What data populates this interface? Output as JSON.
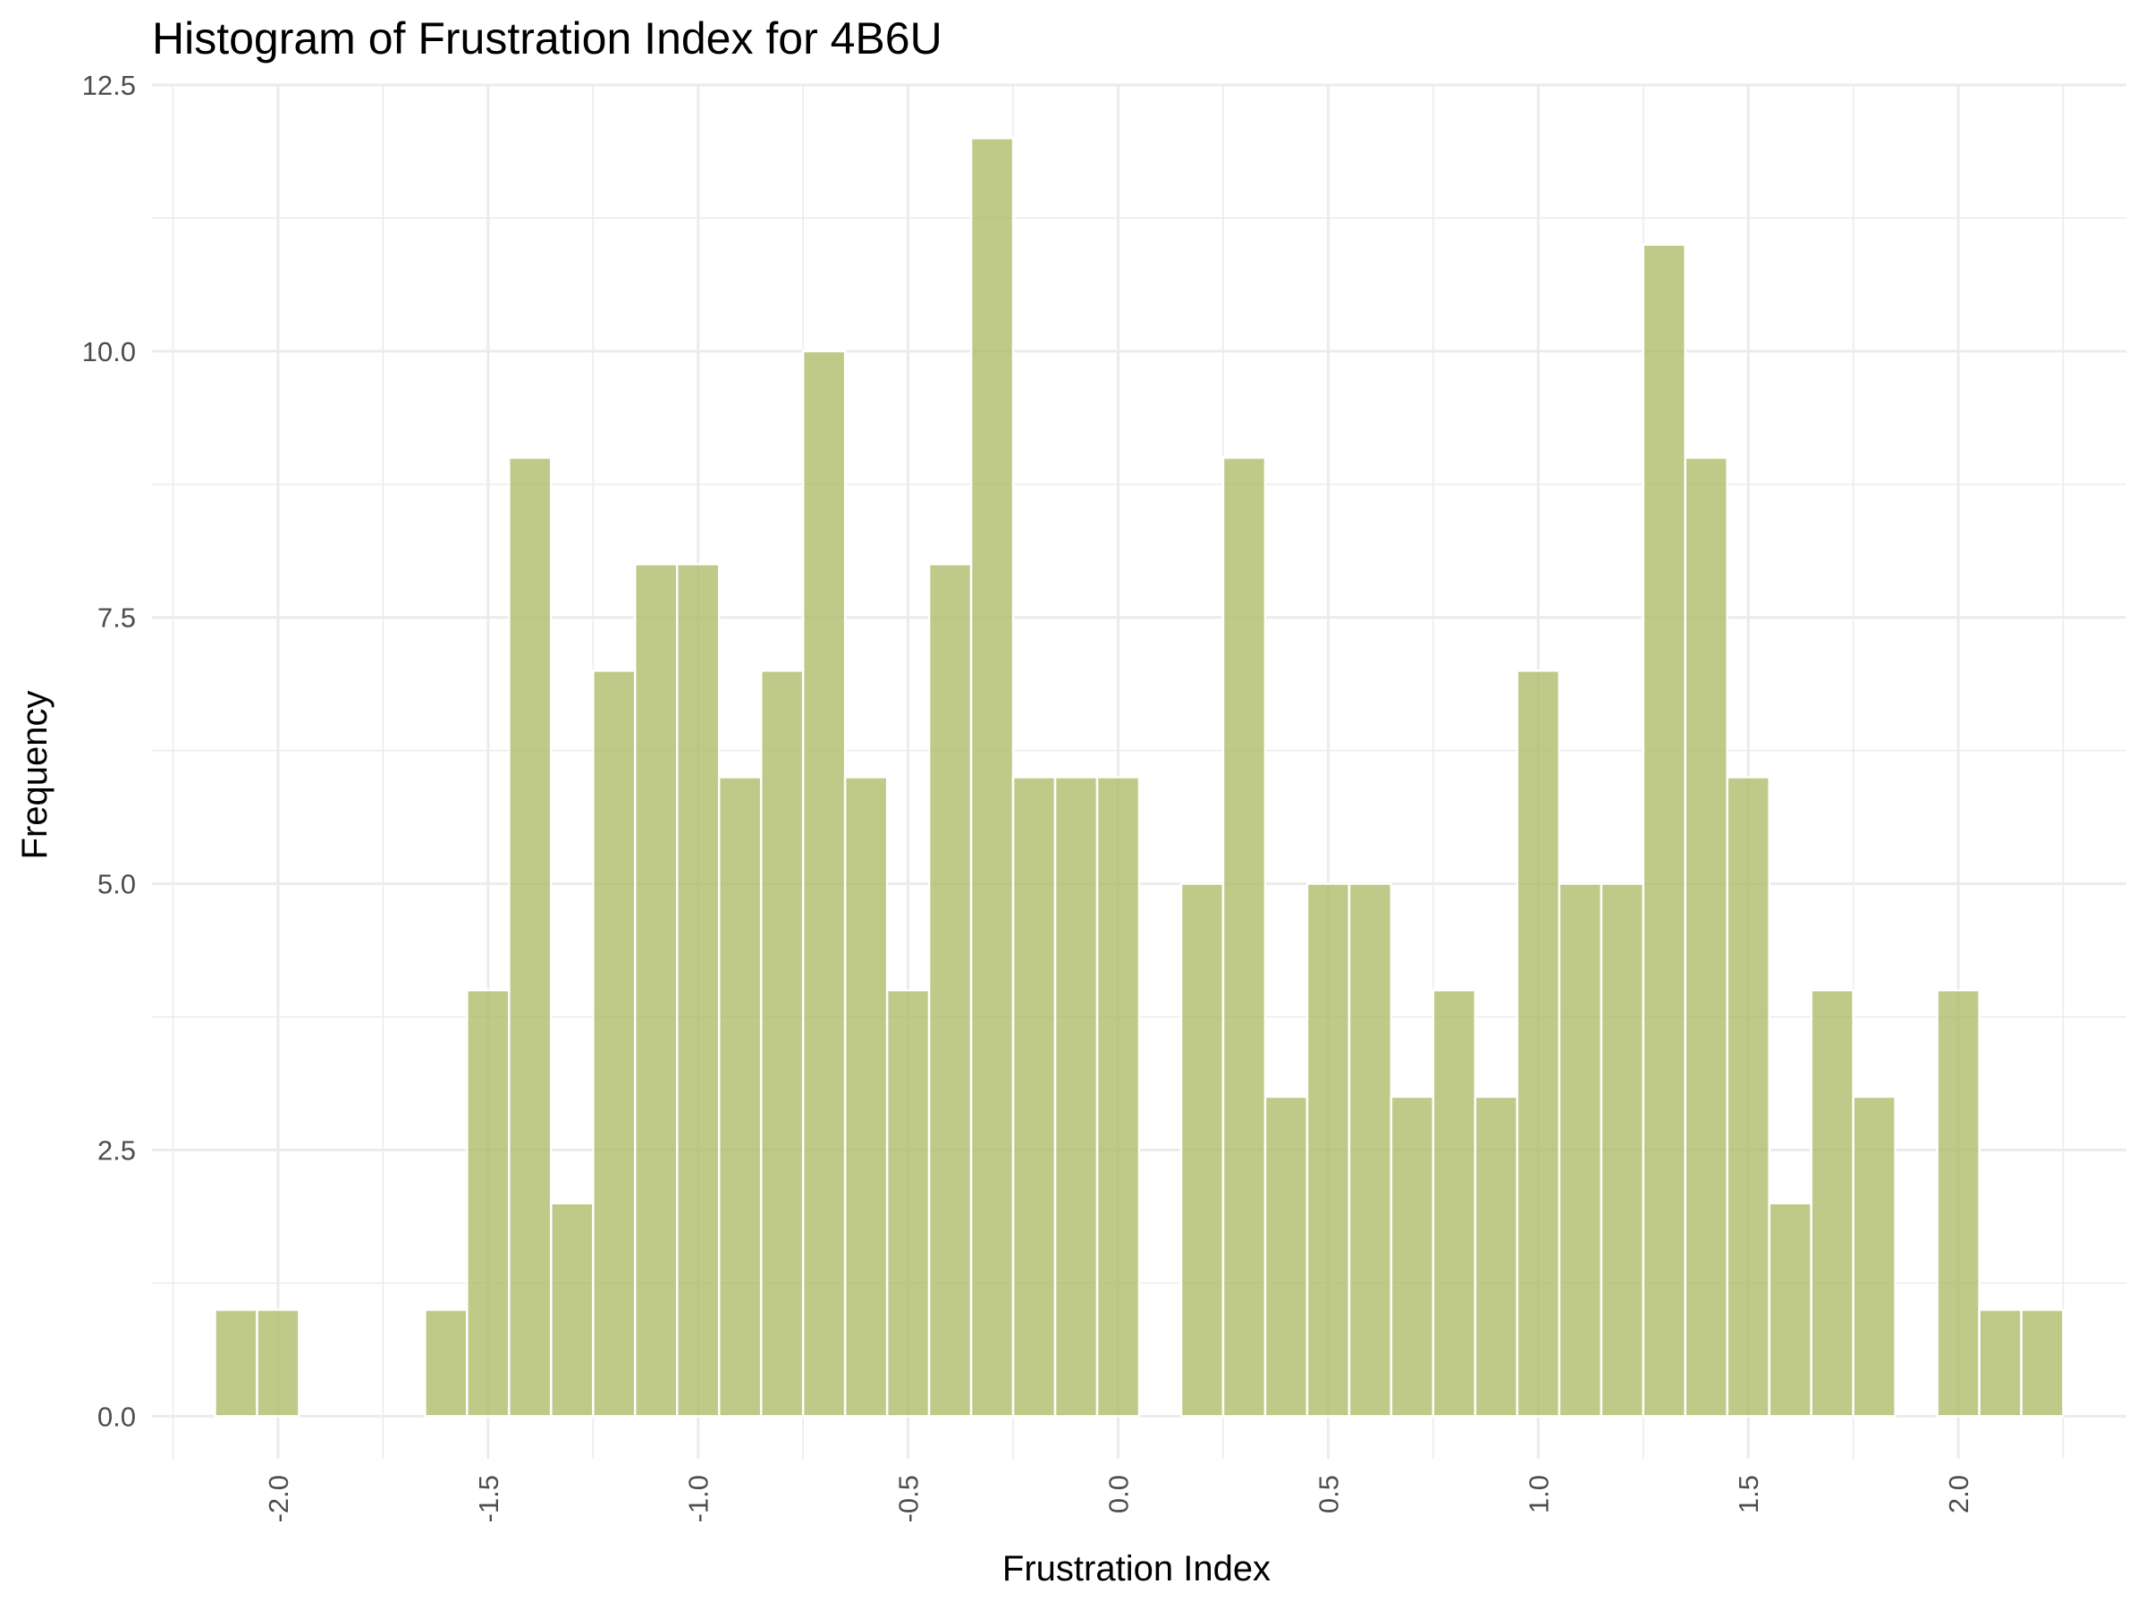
{
  "chart_data": {
    "type": "bar",
    "title": "Histogram of Frustration Index for 4B6U",
    "xlabel": "Frustration Index",
    "ylabel": "Frequency",
    "xlim": [
      -2.3,
      2.4
    ],
    "ylim": [
      -0.4,
      12.5
    ],
    "x_ticks": [
      {
        "value": -2.0,
        "label": "-2.0"
      },
      {
        "value": -1.5,
        "label": "-1.5"
      },
      {
        "value": -1.0,
        "label": "-1.0"
      },
      {
        "value": -0.5,
        "label": "-0.5"
      },
      {
        "value": 0.0,
        "label": "0.0"
      },
      {
        "value": 0.5,
        "label": "0.5"
      },
      {
        "value": 1.0,
        "label": "1.0"
      },
      {
        "value": 1.5,
        "label": "1.5"
      },
      {
        "value": 2.0,
        "label": "2.0"
      }
    ],
    "y_ticks": [
      {
        "value": 0.0,
        "label": "0.0"
      },
      {
        "value": 2.5,
        "label": "2.5"
      },
      {
        "value": 5.0,
        "label": "5.0"
      },
      {
        "value": 7.5,
        "label": "7.5"
      },
      {
        "value": 10.0,
        "label": "10.0"
      },
      {
        "value": 12.5,
        "label": "12.5"
      }
    ],
    "x_tick_rotation": -90,
    "grid": true,
    "bar_color": "#a9b861",
    "bin_width": 0.1,
    "bin_centers": [
      -2.1,
      -2.0,
      -1.9,
      -1.8,
      -1.7,
      -1.6,
      -1.5,
      -1.4,
      -1.3,
      -1.2,
      -1.1,
      -1.0,
      -0.9,
      -0.8,
      -0.7,
      -0.6,
      -0.5,
      -0.4,
      -0.3,
      -0.2,
      -0.1,
      0.0,
      0.1,
      0.2,
      0.3,
      0.4,
      0.5,
      0.6,
      0.7,
      0.8,
      0.9,
      1.0,
      1.1,
      1.2,
      1.3,
      1.4,
      1.5,
      1.6,
      1.7,
      1.8,
      1.9,
      2.0,
      2.1,
      2.2
    ],
    "values": [
      1,
      1,
      0,
      0,
      0,
      1,
      4,
      9,
      2,
      7,
      8,
      8,
      6,
      7,
      10,
      6,
      4,
      8,
      12,
      6,
      6,
      6,
      0,
      5,
      9,
      3,
      5,
      5,
      3,
      4,
      3,
      7,
      5,
      5,
      11,
      9,
      6,
      2,
      4,
      3,
      0,
      4,
      1,
      1
    ]
  }
}
